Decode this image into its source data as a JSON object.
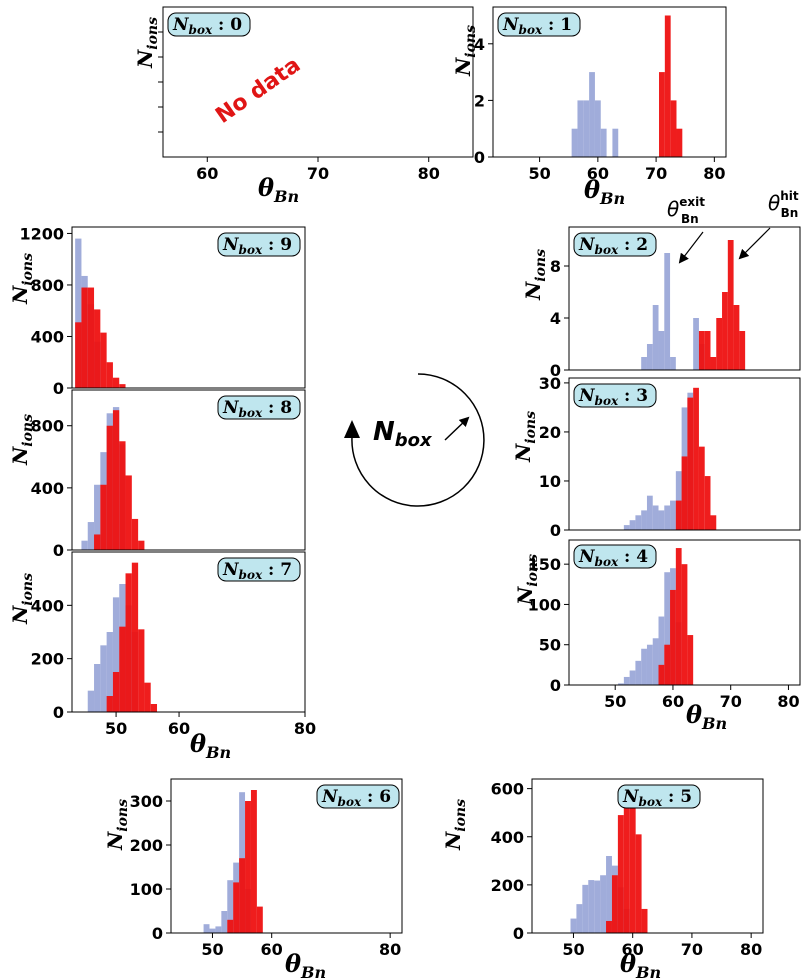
{
  "colors": {
    "exit": "#8f9ed3",
    "hit": "#ee1111",
    "label_bg": "#bfe6ee",
    "no_data": "#e01515"
  },
  "x_axis_label": "θBn",
  "y_axis_label": "Nions",
  "center": {
    "label": "Nbox"
  },
  "annotations": {
    "exit": "θexitBn",
    "hit": "θhitBn"
  },
  "chart_data": [
    {
      "type": "bar",
      "box_label": "Nbox : 0",
      "no_data_text": "No data",
      "xlim": [
        56,
        84
      ],
      "ylim": [
        0,
        1
      ],
      "xticks": [
        60,
        70,
        80
      ],
      "yticks": [],
      "bin_width": 1,
      "series": []
    },
    {
      "type": "bar",
      "box_label": "Nbox : 1",
      "xlim": [
        42,
        82
      ],
      "ylim": [
        0,
        5.3
      ],
      "xticks": [
        50,
        60,
        70,
        80
      ],
      "yticks": [
        0,
        2,
        4
      ],
      "bin_width": 1,
      "series": [
        {
          "role": "exit",
          "x": [
            56,
            57,
            58,
            59,
            60,
            61,
            63
          ],
          "values": [
            1,
            2,
            2,
            3,
            2,
            1,
            1
          ]
        },
        {
          "role": "hit",
          "x": [
            71,
            72,
            73,
            74
          ],
          "values": [
            3,
            5,
            2,
            1
          ]
        }
      ]
    },
    {
      "type": "bar",
      "box_label": "Nbox : 2",
      "xlim": [
        42,
        82
      ],
      "ylim": [
        0,
        11
      ],
      "xticks": [],
      "yticks": [
        0,
        4,
        8
      ],
      "bin_width": 1,
      "series": [
        {
          "role": "exit",
          "x": [
            55,
            56,
            57,
            58,
            59,
            60,
            64,
            65
          ],
          "values": [
            1,
            2,
            5,
            3,
            9,
            1,
            4,
            2
          ]
        },
        {
          "role": "hit",
          "x": [
            65,
            66,
            67,
            68,
            69,
            70,
            71,
            72
          ],
          "values": [
            3,
            3,
            1,
            4,
            6,
            10,
            5,
            3
          ]
        }
      ]
    },
    {
      "type": "bar",
      "box_label": "Nbox : 3",
      "xlim": [
        42,
        82
      ],
      "ylim": [
        0,
        31
      ],
      "xticks": [],
      "yticks": [
        0,
        10,
        20,
        30
      ],
      "bin_width": 1,
      "series": [
        {
          "role": "exit",
          "x": [
            52,
            53,
            54,
            55,
            56,
            57,
            58,
            59,
            60,
            61,
            62,
            63
          ],
          "values": [
            1,
            2,
            3,
            4,
            7,
            5,
            4,
            5,
            6,
            12,
            25,
            28
          ]
        },
        {
          "role": "hit",
          "x": [
            61,
            62,
            63,
            64,
            65,
            66,
            67
          ],
          "values": [
            6,
            15,
            27,
            29,
            17,
            11,
            3
          ]
        }
      ]
    },
    {
      "type": "bar",
      "box_label": "Nbox : 4",
      "xlim": [
        42,
        82
      ],
      "ylim": [
        0,
        180
      ],
      "xticks": [
        50,
        60,
        70,
        80
      ],
      "yticks": [
        0,
        50,
        100,
        150
      ],
      "bin_width": 1,
      "series": [
        {
          "role": "exit",
          "x": [
            51,
            52,
            53,
            54,
            55,
            56,
            57,
            58,
            59,
            60,
            61
          ],
          "values": [
            2,
            10,
            18,
            30,
            45,
            50,
            58,
            85,
            140,
            145,
            78
          ]
        },
        {
          "role": "hit",
          "x": [
            58,
            59,
            60,
            61,
            62,
            63
          ],
          "values": [
            25,
            50,
            118,
            170,
            150,
            62
          ]
        }
      ]
    },
    {
      "type": "bar",
      "box_label": "Nbox : 5",
      "xlim": [
        43,
        82
      ],
      "ylim": [
        0,
        640
      ],
      "xticks": [
        50,
        60,
        70,
        80
      ],
      "yticks": [
        0,
        200,
        400,
        600
      ],
      "bin_width": 1,
      "series": [
        {
          "role": "exit",
          "x": [
            50,
            51,
            52,
            53,
            54,
            55,
            56,
            57,
            58,
            59
          ],
          "values": [
            60,
            120,
            200,
            220,
            218,
            240,
            320,
            280,
            190,
            100
          ]
        },
        {
          "role": "hit",
          "x": [
            56,
            57,
            58,
            59,
            60,
            61,
            62
          ],
          "values": [
            50,
            240,
            490,
            550,
            610,
            410,
            100
          ]
        }
      ]
    },
    {
      "type": "bar",
      "box_label": "Nbox : 6",
      "xlim": [
        43,
        82
      ],
      "ylim": [
        0,
        350
      ],
      "xticks": [
        50,
        60,
        80
      ],
      "yticks": [
        0,
        100,
        200,
        300
      ],
      "bin_width": 1,
      "series": [
        {
          "role": "exit",
          "x": [
            49,
            50,
            51,
            52,
            53,
            54,
            55,
            56
          ],
          "values": [
            20,
            10,
            15,
            50,
            120,
            160,
            320,
            100
          ]
        },
        {
          "role": "hit",
          "x": [
            53,
            54,
            55,
            56,
            57,
            58
          ],
          "values": [
            30,
            115,
            170,
            300,
            325,
            60
          ]
        }
      ]
    },
    {
      "type": "bar",
      "box_label": "Nbox : 7",
      "xlim": [
        43,
        80
      ],
      "ylim": [
        0,
        600
      ],
      "xticks": [
        50,
        60,
        80
      ],
      "yticks": [
        0,
        200,
        400
      ],
      "bin_width": 1,
      "series": [
        {
          "role": "exit",
          "x": [
            46,
            47,
            48,
            49,
            50,
            51,
            52,
            53
          ],
          "values": [
            80,
            180,
            250,
            300,
            430,
            480,
            400,
            300
          ]
        },
        {
          "role": "hit",
          "x": [
            49,
            50,
            51,
            52,
            53,
            54,
            55,
            56
          ],
          "values": [
            60,
            150,
            320,
            520,
            560,
            310,
            110,
            30
          ]
        }
      ]
    },
    {
      "type": "bar",
      "box_label": "Nbox : 8",
      "xlim": [
        43,
        80
      ],
      "ylim": [
        0,
        1030
      ],
      "xticks": [],
      "yticks": [
        0,
        400,
        800
      ],
      "bin_width": 1,
      "series": [
        {
          "role": "exit",
          "x": [
            45,
            46,
            47,
            48,
            49,
            50,
            51
          ],
          "values": [
            60,
            180,
            420,
            630,
            880,
            920,
            680
          ]
        },
        {
          "role": "hit",
          "x": [
            47,
            48,
            49,
            50,
            51,
            52,
            53,
            54
          ],
          "values": [
            100,
            420,
            800,
            900,
            700,
            480,
            200,
            60
          ]
        }
      ]
    },
    {
      "type": "bar",
      "box_label": "Nbox : 9",
      "xlim": [
        43,
        80
      ],
      "ylim": [
        0,
        1250
      ],
      "xticks": [],
      "yticks": [
        0,
        400,
        800,
        1200
      ],
      "bin_width": 1,
      "series": [
        {
          "role": "exit",
          "x": [
            44,
            45,
            46,
            47
          ],
          "values": [
            1160,
            870,
            650,
            360
          ]
        },
        {
          "role": "hit",
          "x": [
            44,
            45,
            46,
            47,
            48,
            49,
            50,
            51
          ],
          "values": [
            510,
            780,
            780,
            610,
            430,
            200,
            80,
            30
          ]
        }
      ]
    }
  ]
}
